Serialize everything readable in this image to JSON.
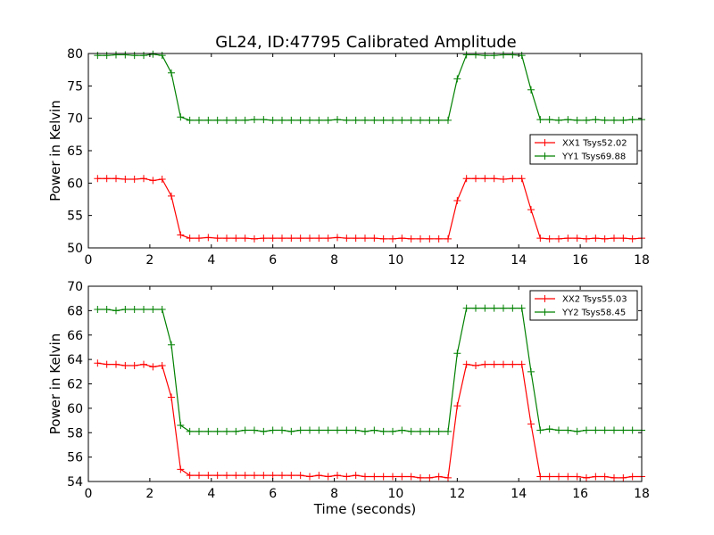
{
  "chart_data": [
    {
      "type": "line",
      "title": "GL24, ID:47795 Calibrated Amplitude",
      "xlabel": "",
      "ylabel": "Power in Kelvin",
      "xlim": [
        0,
        18
      ],
      "ylim": [
        50,
        80
      ],
      "xticks": [
        "0",
        "2",
        "4",
        "6",
        "8",
        "10",
        "12",
        "14",
        "16",
        "18"
      ],
      "yticks": [
        "50",
        "55",
        "60",
        "65",
        "70",
        "75",
        "80"
      ],
      "grid": false,
      "legend_position": "center-right",
      "x": [
        0.3,
        0.6,
        0.9,
        1.2,
        1.5,
        1.8,
        2.1,
        2.4,
        2.7,
        3.0,
        3.3,
        3.6,
        3.9,
        4.2,
        4.5,
        4.8,
        5.1,
        5.4,
        5.7,
        6.0,
        6.3,
        6.6,
        6.9,
        7.2,
        7.5,
        7.8,
        8.1,
        8.4,
        8.7,
        9.0,
        9.3,
        9.6,
        9.9,
        10.2,
        10.5,
        10.8,
        11.1,
        11.4,
        11.7,
        12.0,
        12.3,
        12.6,
        12.9,
        13.2,
        13.5,
        13.8,
        14.1,
        14.4,
        14.7,
        15.0,
        15.3,
        15.6,
        15.9,
        16.2,
        16.5,
        16.8,
        17.1,
        17.4,
        17.7,
        18.0
      ],
      "series": [
        {
          "name": "XX1 Tsys52.02",
          "color": "#ff0000",
          "values": [
            60.7,
            60.7,
            60.7,
            60.6,
            60.6,
            60.7,
            60.4,
            60.6,
            58.0,
            52.0,
            51.5,
            51.5,
            51.6,
            51.5,
            51.5,
            51.5,
            51.5,
            51.4,
            51.5,
            51.5,
            51.5,
            51.5,
            51.5,
            51.5,
            51.5,
            51.5,
            51.6,
            51.5,
            51.5,
            51.5,
            51.5,
            51.4,
            51.4,
            51.5,
            51.4,
            51.4,
            51.4,
            51.4,
            51.4,
            57.3,
            60.7,
            60.7,
            60.7,
            60.7,
            60.6,
            60.7,
            60.7,
            55.9,
            51.5,
            51.4,
            51.4,
            51.5,
            51.5,
            51.4,
            51.5,
            51.4,
            51.5,
            51.5,
            51.4,
            51.5
          ]
        },
        {
          "name": "YY1 Tsys69.88",
          "color": "#008000",
          "values": [
            79.7,
            79.7,
            79.8,
            79.8,
            79.7,
            79.7,
            79.9,
            79.7,
            77.0,
            70.2,
            69.7,
            69.7,
            69.7,
            69.7,
            69.7,
            69.7,
            69.7,
            69.8,
            69.8,
            69.7,
            69.7,
            69.7,
            69.7,
            69.7,
            69.7,
            69.7,
            69.8,
            69.7,
            69.7,
            69.7,
            69.7,
            69.7,
            69.7,
            69.7,
            69.7,
            69.7,
            69.7,
            69.7,
            69.7,
            76.1,
            79.8,
            79.8,
            79.7,
            79.7,
            79.8,
            79.8,
            79.7,
            74.4,
            69.8,
            69.8,
            69.7,
            69.8,
            69.7,
            69.7,
            69.8,
            69.7,
            69.7,
            69.7,
            69.8,
            69.8
          ]
        }
      ]
    },
    {
      "type": "line",
      "title": "",
      "xlabel": "Time (seconds)",
      "ylabel": "Power in Kelvin",
      "xlim": [
        0,
        18
      ],
      "ylim": [
        54,
        70
      ],
      "xticks": [
        "0",
        "2",
        "4",
        "6",
        "8",
        "10",
        "12",
        "14",
        "16",
        "18"
      ],
      "yticks": [
        "54",
        "56",
        "58",
        "60",
        "62",
        "64",
        "66",
        "68",
        "70"
      ],
      "grid": false,
      "legend_position": "top-right",
      "x": [
        0.3,
        0.6,
        0.9,
        1.2,
        1.5,
        1.8,
        2.1,
        2.4,
        2.7,
        3.0,
        3.3,
        3.6,
        3.9,
        4.2,
        4.5,
        4.8,
        5.1,
        5.4,
        5.7,
        6.0,
        6.3,
        6.6,
        6.9,
        7.2,
        7.5,
        7.8,
        8.1,
        8.4,
        8.7,
        9.0,
        9.3,
        9.6,
        9.9,
        10.2,
        10.5,
        10.8,
        11.1,
        11.4,
        11.7,
        12.0,
        12.3,
        12.6,
        12.9,
        13.2,
        13.5,
        13.8,
        14.1,
        14.4,
        14.7,
        15.0,
        15.3,
        15.6,
        15.9,
        16.2,
        16.5,
        16.8,
        17.1,
        17.4,
        17.7,
        18.0
      ],
      "series": [
        {
          "name": "XX2 Tsys55.03",
          "color": "#ff0000",
          "values": [
            63.7,
            63.6,
            63.6,
            63.5,
            63.5,
            63.6,
            63.4,
            63.5,
            60.9,
            55.0,
            54.5,
            54.5,
            54.5,
            54.5,
            54.5,
            54.5,
            54.5,
            54.5,
            54.5,
            54.5,
            54.5,
            54.5,
            54.5,
            54.4,
            54.5,
            54.4,
            54.5,
            54.4,
            54.5,
            54.4,
            54.4,
            54.4,
            54.4,
            54.4,
            54.4,
            54.3,
            54.3,
            54.4,
            54.3,
            60.2,
            63.6,
            63.5,
            63.6,
            63.6,
            63.6,
            63.6,
            63.6,
            58.7,
            54.4,
            54.4,
            54.4,
            54.4,
            54.4,
            54.3,
            54.4,
            54.4,
            54.3,
            54.3,
            54.4,
            54.4
          ]
        },
        {
          "name": "YY2 Tsys58.45",
          "color": "#008000",
          "values": [
            68.1,
            68.1,
            68.0,
            68.1,
            68.1,
            68.1,
            68.1,
            68.1,
            65.2,
            58.6,
            58.1,
            58.1,
            58.1,
            58.1,
            58.1,
            58.1,
            58.2,
            58.2,
            58.1,
            58.2,
            58.2,
            58.1,
            58.2,
            58.2,
            58.2,
            58.2,
            58.2,
            58.2,
            58.2,
            58.1,
            58.2,
            58.1,
            58.1,
            58.2,
            58.1,
            58.1,
            58.1,
            58.1,
            58.1,
            64.5,
            68.2,
            68.2,
            68.2,
            68.2,
            68.2,
            68.2,
            68.2,
            63.0,
            58.2,
            58.3,
            58.2,
            58.2,
            58.1,
            58.2,
            58.2,
            58.2,
            58.2,
            58.2,
            58.2,
            58.2
          ]
        }
      ]
    }
  ]
}
